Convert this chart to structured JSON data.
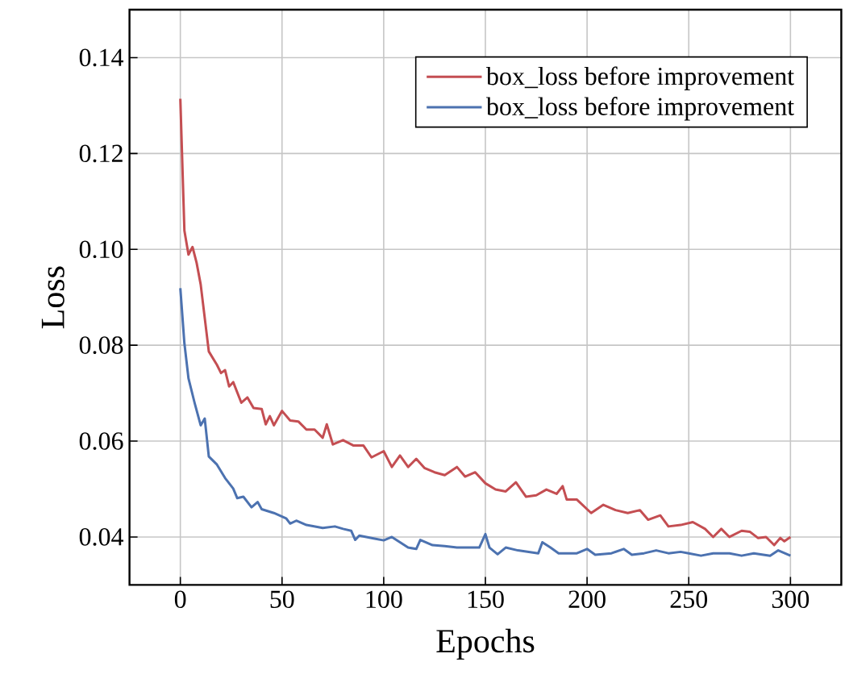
{
  "chart_data": {
    "type": "line",
    "xlabel": "Epochs",
    "ylabel": "Loss",
    "xlim": [
      -25,
      325
    ],
    "ylim": [
      0.03,
      0.15
    ],
    "xticks": [
      0,
      50,
      100,
      150,
      200,
      250,
      300
    ],
    "yticks": [
      {
        "value": 0.04,
        "label": "0.04"
      },
      {
        "value": 0.06,
        "label": "0.06"
      },
      {
        "value": 0.08,
        "label": "0.08"
      },
      {
        "value": 0.1,
        "label": "0.10"
      },
      {
        "value": 0.12,
        "label": "0.12"
      },
      {
        "value": 0.14,
        "label": "0.14"
      }
    ],
    "grid": true,
    "legend": "top right",
    "line_style": "solid",
    "marker": "none",
    "series": [
      {
        "name": "box_loss before improvement",
        "color": "#c44e52",
        "x": [
          0,
          2,
          4,
          6,
          8,
          10,
          14,
          18,
          20,
          22,
          24,
          26,
          30,
          33,
          36,
          40,
          42,
          44,
          46,
          50,
          54,
          58,
          62,
          66,
          70,
          72,
          75,
          80,
          85,
          90,
          94,
          100,
          104,
          108,
          112,
          116,
          120,
          125,
          130,
          136,
          140,
          145,
          150,
          155,
          160,
          165,
          170,
          175,
          180,
          185,
          188,
          190,
          195,
          202,
          208,
          214,
          220,
          226,
          230,
          236,
          240,
          246,
          252,
          258,
          262,
          266,
          270,
          276,
          280,
          284,
          288,
          292,
          295,
          297,
          300
        ],
        "values": [
          0.1314,
          0.1039,
          0.0989,
          0.1005,
          0.0972,
          0.0927,
          0.0787,
          0.0759,
          0.0742,
          0.0748,
          0.0714,
          0.0723,
          0.068,
          0.0691,
          0.0669,
          0.0667,
          0.0635,
          0.0652,
          0.0633,
          0.0663,
          0.0643,
          0.0641,
          0.0624,
          0.0624,
          0.0607,
          0.0635,
          0.0593,
          0.0602,
          0.0591,
          0.0591,
          0.0566,
          0.0579,
          0.0546,
          0.057,
          0.0546,
          0.0563,
          0.0544,
          0.0535,
          0.0529,
          0.0546,
          0.0526,
          0.0535,
          0.0512,
          0.0499,
          0.0495,
          0.0514,
          0.0484,
          0.0487,
          0.0499,
          0.049,
          0.0506,
          0.0478,
          0.0478,
          0.045,
          0.0467,
          0.0456,
          0.045,
          0.0456,
          0.0436,
          0.0445,
          0.0422,
          0.0425,
          0.0431,
          0.0417,
          0.04,
          0.0417,
          0.04,
          0.0413,
          0.0411,
          0.0398,
          0.04,
          0.0383,
          0.0398,
          0.0391,
          0.04
        ]
      },
      {
        "name": "box_loss before improvement",
        "color": "#4c72b0",
        "x": [
          0,
          2,
          4,
          7,
          10,
          12,
          14,
          18,
          22,
          26,
          28,
          31,
          35,
          38,
          40,
          46,
          52,
          54,
          57,
          62,
          70,
          76,
          80,
          84,
          86,
          88,
          95,
          100,
          104,
          108,
          112,
          116,
          118,
          124,
          130,
          136,
          142,
          147,
          150,
          152,
          156,
          160,
          166,
          176,
          178,
          182,
          186,
          195,
          200,
          204,
          212,
          218,
          222,
          228,
          234,
          240,
          246,
          250,
          256,
          262,
          270,
          276,
          282,
          290,
          294,
          300
        ],
        "values": [
          0.0919,
          0.0804,
          0.0731,
          0.068,
          0.0633,
          0.0647,
          0.0568,
          0.0551,
          0.0523,
          0.0501,
          0.0481,
          0.0484,
          0.0462,
          0.0473,
          0.0458,
          0.045,
          0.0439,
          0.0428,
          0.0434,
          0.0425,
          0.0419,
          0.0422,
          0.0417,
          0.0413,
          0.0394,
          0.0403,
          0.0397,
          0.0393,
          0.04,
          0.0389,
          0.0378,
          0.0375,
          0.0394,
          0.0383,
          0.0381,
          0.0378,
          0.0378,
          0.0378,
          0.0406,
          0.0378,
          0.0364,
          0.0378,
          0.0372,
          0.0366,
          0.0389,
          0.0378,
          0.0366,
          0.0366,
          0.0375,
          0.0363,
          0.0366,
          0.0375,
          0.0363,
          0.0366,
          0.0372,
          0.0366,
          0.0369,
          0.0366,
          0.0361,
          0.0366,
          0.0366,
          0.0361,
          0.0366,
          0.0361,
          0.0372,
          0.0361
        ]
      }
    ]
  }
}
